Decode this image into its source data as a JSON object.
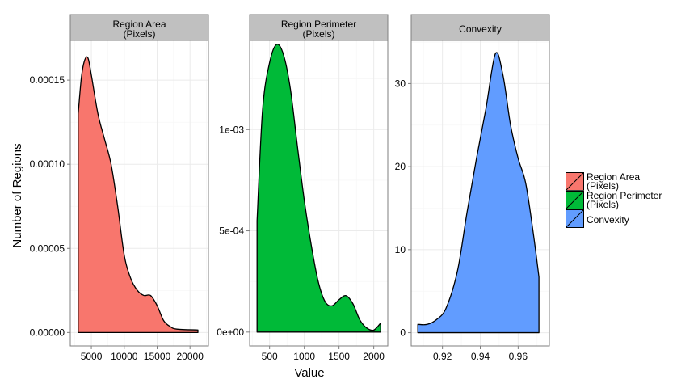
{
  "chart_data": {
    "type": "area",
    "xlabel": "Value",
    "ylabel": "Number of Regions",
    "grid": true,
    "legend_position": "right",
    "panels": [
      {
        "strip": [
          "Region Area",
          "(Pixels)"
        ],
        "fill": "#F8766D",
        "xlim": [
          1800,
          22800
        ],
        "ylim": [
          -8e-06,
          0.0001736
        ],
        "x_ticks": [
          5000,
          10000,
          15000,
          20000
        ],
        "x_tick_labels": [
          "5000",
          "10000",
          "15000",
          "20000"
        ],
        "y_ticks": [
          0,
          5e-05,
          0.0001,
          0.00015
        ],
        "y_tick_labels": [
          "0.00000",
          "0.00005",
          "0.00010",
          "0.00015"
        ],
        "curve": [
          [
            3000,
            0.00013
          ],
          [
            3500,
            0.000152
          ],
          [
            4000,
            0.000162
          ],
          [
            4500,
            0.000163
          ],
          [
            5000,
            0.000153
          ],
          [
            6000,
            0.00013
          ],
          [
            7000,
            0.000115
          ],
          [
            8000,
            0.0001
          ],
          [
            9000,
            7.5e-05
          ],
          [
            10000,
            4.6e-05
          ],
          [
            11000,
            3.2e-05
          ],
          [
            12000,
            2.5e-05
          ],
          [
            13000,
            2.2e-05
          ],
          [
            14000,
            2.2e-05
          ],
          [
            15000,
            1.6e-05
          ],
          [
            16000,
            7e-06
          ],
          [
            17000,
            3.5e-06
          ],
          [
            18000,
            2e-06
          ],
          [
            21200,
            1.5e-06
          ]
        ]
      },
      {
        "strip": [
          "Region Perimeter",
          "(Pixels)"
        ],
        "fill": "#00BA38",
        "xlim": [
          213,
          2202
        ],
        "ylim": [
          -6.85e-05,
          0.00144
        ],
        "x_ticks": [
          500,
          1000,
          1500,
          2000
        ],
        "x_tick_labels": [
          "500",
          "1000",
          "1500",
          "2000"
        ],
        "y_ticks": [
          0,
          0.0005,
          0.001
        ],
        "y_tick_labels": [
          "0e+00",
          "5e-04",
          "1e-03"
        ],
        "curve": [
          [
            320,
            0.00055
          ],
          [
            400,
            0.0011
          ],
          [
            500,
            0.00133
          ],
          [
            600,
            0.00142
          ],
          [
            700,
            0.00137
          ],
          [
            800,
            0.0012
          ],
          [
            900,
            0.00092
          ],
          [
            1000,
            0.00065
          ],
          [
            1100,
            0.00043
          ],
          [
            1200,
            0.00025
          ],
          [
            1300,
            0.00015
          ],
          [
            1400,
            0.00013
          ],
          [
            1500,
            0.00016
          ],
          [
            1600,
            0.00018
          ],
          [
            1700,
            0.00014
          ],
          [
            1800,
            6e-05
          ],
          [
            1900,
            2e-05
          ],
          [
            2000,
            1e-05
          ],
          [
            2100,
            4.5e-05
          ]
        ]
      },
      {
        "strip": [
          "Convexity"
        ],
        "fill": "#619CFF",
        "xlim": [
          0.9035,
          0.9765
        ],
        "ylim": [
          -1.6,
          35.2
        ],
        "x_ticks": [
          0.92,
          0.94,
          0.96
        ],
        "x_tick_labels": [
          "0.92",
          "0.94",
          "0.96"
        ],
        "y_ticks": [
          0,
          10,
          20,
          30
        ],
        "y_tick_labels": [
          "0",
          "10",
          "20",
          "30"
        ],
        "curve": [
          [
            0.907,
            1.0
          ],
          [
            0.912,
            1.0
          ],
          [
            0.917,
            1.6
          ],
          [
            0.922,
            3.0
          ],
          [
            0.928,
            7.5
          ],
          [
            0.933,
            14.5
          ],
          [
            0.938,
            21.0
          ],
          [
            0.943,
            27.0
          ],
          [
            0.948,
            33.6
          ],
          [
            0.952,
            31.0
          ],
          [
            0.956,
            25.0
          ],
          [
            0.96,
            21.0
          ],
          [
            0.964,
            18.0
          ],
          [
            0.968,
            12.0
          ],
          [
            0.971,
            6.7
          ]
        ]
      }
    ],
    "legend": [
      {
        "label": [
          "Region Area",
          "(Pixels)"
        ],
        "fill": "#F8766D"
      },
      {
        "label": [
          "Region Perimeter",
          "(Pixels)"
        ],
        "fill": "#00BA38"
      },
      {
        "label": [
          "Convexity"
        ],
        "fill": "#619CFF"
      }
    ],
    "colors": {
      "strip_bg": "#C0C0C0",
      "frame": "#7F7F7F",
      "grid": "#EBEBEB",
      "outline": "#000000"
    }
  }
}
